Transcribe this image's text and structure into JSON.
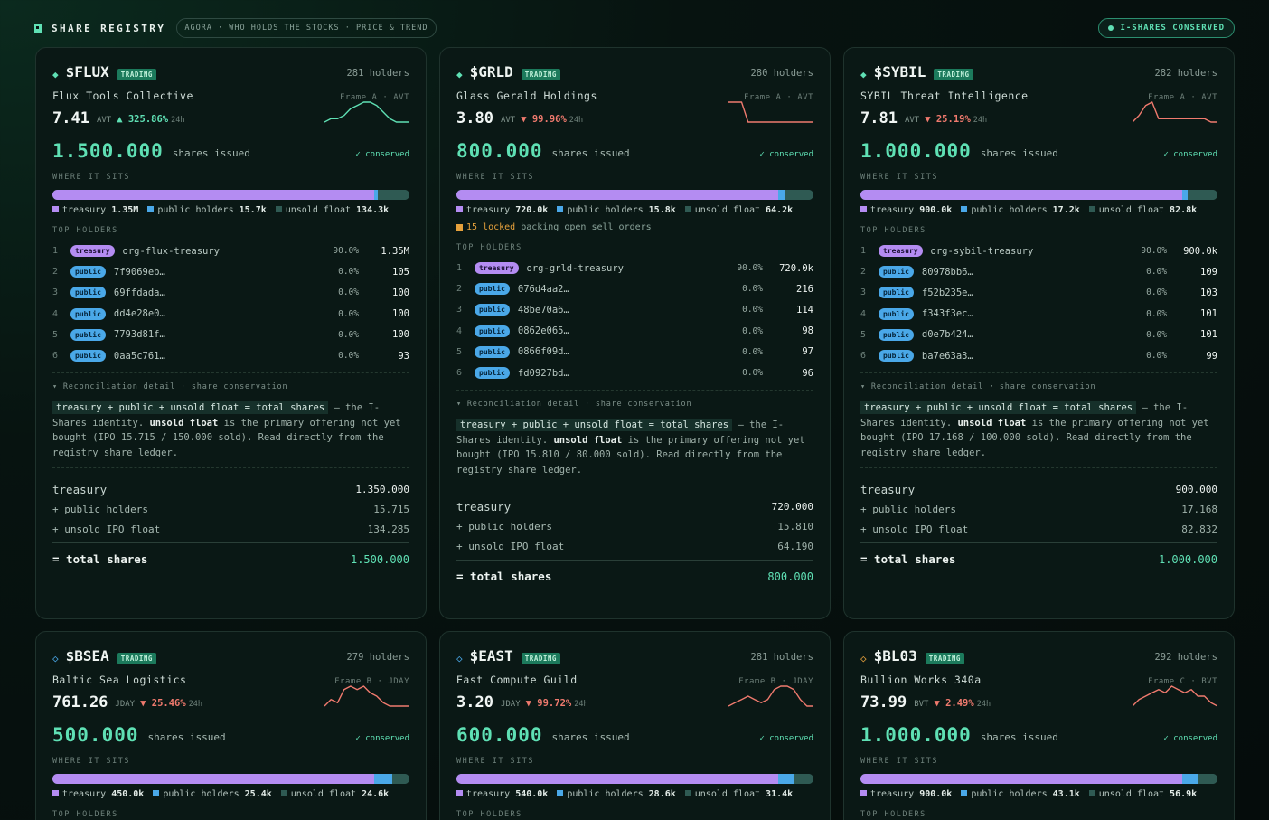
{
  "header": {
    "title": "SHARE REGISTRY",
    "nav": "AGORA · WHO HOLDS THE STOCKS · PRICE & TREND",
    "status_pill": "I-SHARES CONSERVED"
  },
  "labels": {
    "shares_issued": "shares issued",
    "conserved": "✓ conserved",
    "where_it_sits": "WHERE IT SITS",
    "top_holders": "TOP HOLDERS",
    "treasury": "treasury",
    "public_holders": "public holders",
    "unsold_float": "unsold float",
    "recon_title": "▾ Reconciliation detail · share conservation",
    "formula": "treasury + public + unsold float = total shares",
    "identity_tail": " — the I-Shares identity. ",
    "unsold_bold": "unsold float",
    "primary_text": " is the primary offering not yet bought ",
    "read_text": ". Read directly from the registry share ledger.",
    "recon_treasury": "treasury",
    "recon_public": "+ public holders",
    "recon_unsold": "+ unsold IPO float",
    "recon_total": "= total shares",
    "locked_suffix": "backing open sell orders",
    "ch_24h": "24h"
  },
  "cards": [
    {
      "ticker": "$FLUX",
      "badge": "TRADING",
      "holders": "281 holders",
      "name": "Flux Tools Collective",
      "frame": "Frame A · AVT",
      "price": "7.41",
      "unit": "AVT",
      "change": "▲ 325.86%",
      "change_dir": "up",
      "issued": "1.500.000",
      "split": {
        "treasury": 0.9,
        "public": 0.0105,
        "unsold": 0.0895
      },
      "legend": {
        "treasury": "1.35M",
        "public": "15.7k",
        "unsold": "134.3k"
      },
      "locked": null,
      "holders_list": [
        {
          "idx": "1",
          "type": "treasury",
          "id": "org-flux-treasury",
          "pct": "90.0%",
          "amt": "1.35M"
        },
        {
          "idx": "2",
          "type": "public",
          "id": "7f9069eb…",
          "pct": "0.0%",
          "amt": "105"
        },
        {
          "idx": "3",
          "type": "public",
          "id": "69ffdada…",
          "pct": "0.0%",
          "amt": "100"
        },
        {
          "idx": "4",
          "type": "public",
          "id": "dd4e28e0…",
          "pct": "0.0%",
          "amt": "100"
        },
        {
          "idx": "5",
          "type": "public",
          "id": "7793d81f…",
          "pct": "0.0%",
          "amt": "100"
        },
        {
          "idx": "6",
          "type": "public",
          "id": "0aa5c761…",
          "pct": "0.0%",
          "amt": "93"
        }
      ],
      "ipo": "(IPO 15.715 / 150.000 sold)",
      "recon": {
        "treasury": "1.350.000",
        "public": "15.715",
        "unsold": "134.285",
        "total": "1.500.000"
      },
      "spark": [
        6,
        5,
        5,
        4,
        2,
        1,
        0,
        0,
        1,
        3,
        5,
        6,
        6,
        6
      ]
    },
    {
      "ticker": "$GRLD",
      "badge": "TRADING",
      "holders": "280 holders",
      "name": "Glass Gerald Holdings",
      "frame": "Frame A · AVT",
      "price": "3.80",
      "unit": "AVT",
      "change": "▼ 99.96%",
      "change_dir": "down",
      "issued": "800.000",
      "split": {
        "treasury": 0.9,
        "public": 0.0198,
        "unsold": 0.0802
      },
      "legend": {
        "treasury": "720.0k",
        "public": "15.8k",
        "unsold": "64.2k"
      },
      "locked": {
        "count": "15 locked"
      },
      "holders_list": [
        {
          "idx": "1",
          "type": "treasury",
          "id": "org-grld-treasury",
          "pct": "90.0%",
          "amt": "720.0k"
        },
        {
          "idx": "2",
          "type": "public",
          "id": "076d4aa2…",
          "pct": "0.0%",
          "amt": "216"
        },
        {
          "idx": "3",
          "type": "public",
          "id": "48be70a6…",
          "pct": "0.0%",
          "amt": "114"
        },
        {
          "idx": "4",
          "type": "public",
          "id": "0862e065…",
          "pct": "0.0%",
          "amt": "98"
        },
        {
          "idx": "5",
          "type": "public",
          "id": "0866f09d…",
          "pct": "0.0%",
          "amt": "97"
        },
        {
          "idx": "6",
          "type": "public",
          "id": "fd0927bd…",
          "pct": "0.0%",
          "amt": "96"
        }
      ],
      "ipo": "(IPO 15.810 / 80.000 sold)",
      "recon": {
        "treasury": "720.000",
        "public": "15.810",
        "unsold": "64.190",
        "total": "800.000"
      },
      "spark": [
        0,
        0,
        0,
        6,
        6,
        6,
        6,
        6,
        6,
        6,
        6,
        6,
        6,
        6
      ]
    },
    {
      "ticker": "$SYBIL",
      "badge": "TRADING",
      "holders": "282 holders",
      "name": "SYBIL Threat Intelligence",
      "frame": "Frame A · AVT",
      "price": "7.81",
      "unit": "AVT",
      "change": "▼ 25.19%",
      "change_dir": "down",
      "issued": "1.000.000",
      "split": {
        "treasury": 0.9,
        "public": 0.0172,
        "unsold": 0.0828
      },
      "legend": {
        "treasury": "900.0k",
        "public": "17.2k",
        "unsold": "82.8k"
      },
      "locked": null,
      "holders_list": [
        {
          "idx": "1",
          "type": "treasury",
          "id": "org-sybil-treasury",
          "pct": "90.0%",
          "amt": "900.0k"
        },
        {
          "idx": "2",
          "type": "public",
          "id": "80978bb6…",
          "pct": "0.0%",
          "amt": "109"
        },
        {
          "idx": "3",
          "type": "public",
          "id": "f52b235e…",
          "pct": "0.0%",
          "amt": "103"
        },
        {
          "idx": "4",
          "type": "public",
          "id": "f343f3ec…",
          "pct": "0.0%",
          "amt": "101"
        },
        {
          "idx": "5",
          "type": "public",
          "id": "d0e7b424…",
          "pct": "0.0%",
          "amt": "101"
        },
        {
          "idx": "6",
          "type": "public",
          "id": "ba7e63a3…",
          "pct": "0.0%",
          "amt": "99"
        }
      ],
      "ipo": "(IPO 17.168 / 100.000 sold)",
      "recon": {
        "treasury": "900.000",
        "public": "17.168",
        "unsold": "82.832",
        "total": "1.000.000"
      },
      "spark": [
        6,
        4,
        1,
        0,
        5,
        5,
        5,
        5,
        5,
        5,
        5,
        5,
        6,
        6
      ]
    },
    {
      "ticker": "$BSEA",
      "badge": "TRADING",
      "holders": "279 holders",
      "name": "Baltic Sea Logistics",
      "frame": "Frame B · JDAY",
      "price": "761.26",
      "unit": "JDAY",
      "change": "▼ 25.46%",
      "change_dir": "down",
      "issued": "500.000",
      "split": {
        "treasury": 0.9,
        "public": 0.0508,
        "unsold": 0.0492
      },
      "legend": {
        "treasury": "450.0k",
        "public": "25.4k",
        "unsold": "24.6k"
      },
      "spark": [
        6,
        4,
        5,
        1,
        0,
        1,
        0,
        2,
        3,
        5,
        6,
        6,
        6,
        6
      ]
    },
    {
      "ticker": "$EAST",
      "badge": "TRADING",
      "holders": "281 holders",
      "name": "East Compute Guild",
      "frame": "Frame B · JDAY",
      "price": "3.20",
      "unit": "JDAY",
      "change": "▼ 99.72%",
      "change_dir": "down",
      "issued": "600.000",
      "split": {
        "treasury": 0.9,
        "public": 0.0477,
        "unsold": 0.0523
      },
      "legend": {
        "treasury": "540.0k",
        "public": "28.6k",
        "unsold": "31.4k"
      },
      "spark": [
        6,
        5,
        4,
        3,
        4,
        5,
        4,
        1,
        0,
        0,
        1,
        4,
        6,
        6
      ]
    },
    {
      "ticker": "$BL03",
      "badge": "TRADING",
      "holders": "292 holders",
      "name": "Bullion Works 340a",
      "frame": "Frame C · BVT",
      "price": "73.99",
      "unit": "BVT",
      "change": "▼ 2.49%",
      "change_dir": "down",
      "issued": "1.000.000",
      "split": {
        "treasury": 0.9,
        "public": 0.0431,
        "unsold": 0.0569
      },
      "legend": {
        "treasury": "900.0k",
        "public": "43.1k",
        "unsold": "56.9k"
      },
      "spark": [
        6,
        4,
        3,
        2,
        1,
        2,
        0,
        1,
        2,
        1,
        3,
        3,
        5,
        6
      ]
    }
  ],
  "colors": {
    "treasury": "#b48cf2",
    "public": "#4aa8e8",
    "unsold": "#2f5a53",
    "accent": "#5fe0b4",
    "down": "#f07a6e",
    "locked": "#e6a13c"
  }
}
